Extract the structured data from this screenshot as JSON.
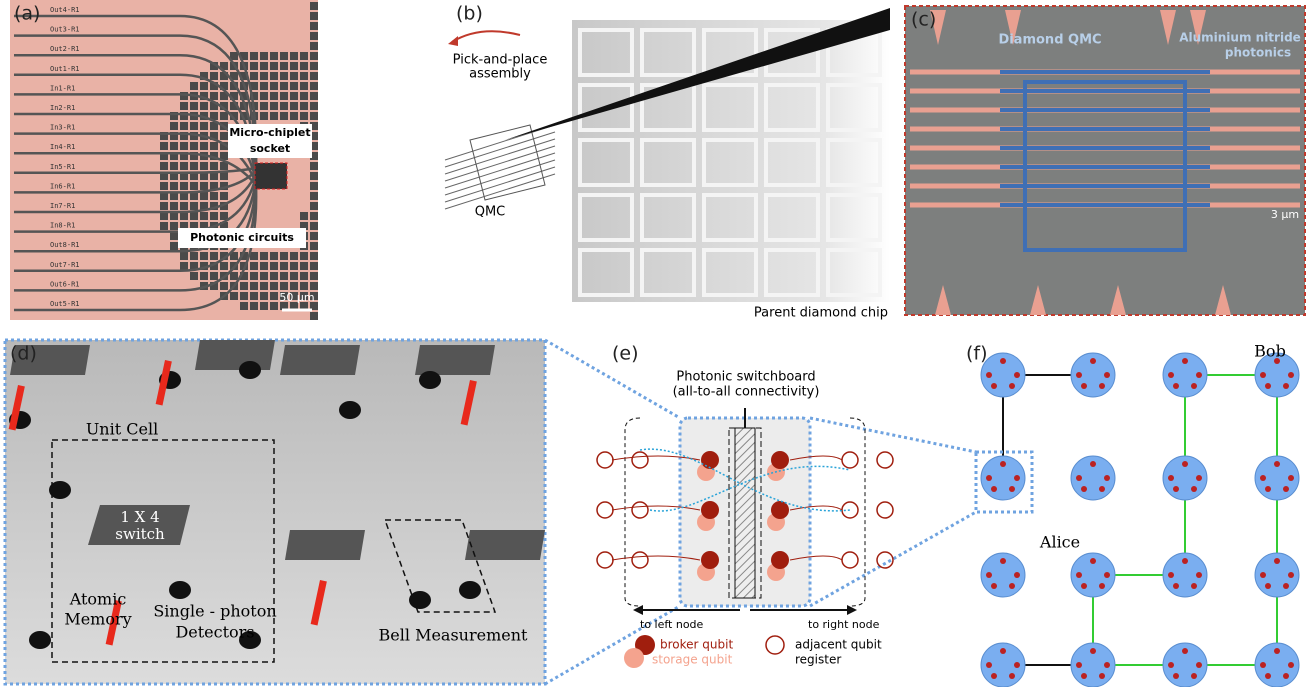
{
  "panels": {
    "a": {
      "label": "(a)",
      "ports": [
        "Out4-R1",
        "Out3-R1",
        "Out2-R1",
        "Out1-R1",
        "In1-R1",
        "In2-R1",
        "In3-R1",
        "In4-R1",
        "In5-R1",
        "In6-R1",
        "In7-R1",
        "In8-R1",
        "Out8-R1",
        "Out7-R1",
        "Out6-R1",
        "Out5-R1"
      ],
      "socket": [
        "Micro-chiplet",
        "socket"
      ],
      "circuits": "Photonic circuits",
      "scale_bar": "50 µm"
    },
    "b": {
      "label": "(b)",
      "assembly": [
        "Pick-and-place",
        "assembly"
      ],
      "qmc": "QMC",
      "parent": "Parent diamond chip"
    },
    "c": {
      "label": "(c)",
      "qmc": "Diamond QMC",
      "photonics": [
        "Aluminium nitride",
        "photonics"
      ],
      "scale_bar": "3 µm"
    },
    "d": {
      "label": "(d)",
      "unit_cell": "Unit Cell",
      "switch": [
        "1 X 4",
        "switch"
      ],
      "memory": [
        "Atomic",
        "Memory"
      ],
      "detectors": [
        "Single - photon",
        "Detectors"
      ],
      "bell": "Bell Measurement"
    },
    "e": {
      "label": "(e)",
      "switchboard": [
        "Photonic switchboard",
        "(all-to-all connectivity)"
      ],
      "left": "to left node",
      "right": "to right node",
      "broker": "broker qubit",
      "storage": "storage qubit",
      "adjacent": [
        "adjacent qubit",
        "register"
      ]
    },
    "f": {
      "label": "(f)",
      "bob": "Bob",
      "alice": "Alice"
    }
  }
}
